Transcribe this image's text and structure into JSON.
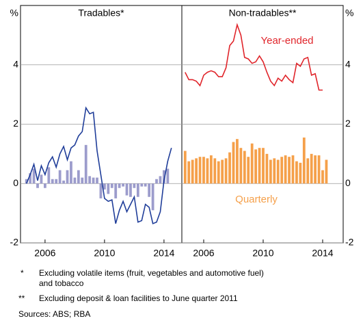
{
  "chart_data": [
    {
      "type": "bar-line",
      "title": "Tradables*",
      "y_label": "%",
      "x": [
        2004.75,
        2005,
        2005.25,
        2005.5,
        2005.75,
        2006,
        2006.25,
        2006.5,
        2006.75,
        2007,
        2007.25,
        2007.5,
        2007.75,
        2008,
        2008.25,
        2008.5,
        2008.75,
        2009,
        2009.25,
        2009.5,
        2009.75,
        2010,
        2010.25,
        2010.5,
        2010.75,
        2011,
        2011.25,
        2011.5,
        2011.75,
        2012,
        2012.25,
        2012.5,
        2012.75,
        2013,
        2013.25,
        2013.5,
        2013.75,
        2014,
        2014.25,
        2014.5
      ],
      "series": [
        {
          "kind": "bar",
          "color": "#9c9ccc",
          "values": [
            0.15,
            0.35,
            0.5,
            -0.15,
            0.3,
            -0.15,
            0.55,
            0.15,
            0.15,
            0.45,
            0.1,
            0.45,
            0.75,
            0.2,
            0.45,
            0.2,
            1.3,
            0.25,
            0.2,
            0.2,
            -0.5,
            -0.2,
            -0.35,
            -0.15,
            -0.5,
            -0.15,
            -0.1,
            -0.4,
            -0.45,
            -0.15,
            -0.45,
            -0.1,
            -0.1,
            -0.45,
            -0.9,
            0.15,
            0.25,
            0.45,
            0.5,
            null
          ]
        },
        {
          "kind": "line",
          "color": "#1f3d99",
          "values": [
            0,
            0.3,
            0.65,
            0.1,
            0.6,
            0.3,
            0.7,
            0.9,
            0.55,
            1.0,
            1.25,
            0.8,
            1.2,
            1.3,
            1.6,
            1.75,
            2.55,
            2.35,
            2.4,
            1.1,
            0.3,
            -0.5,
            -0.6,
            -0.55,
            -1.35,
            -0.9,
            -0.6,
            -0.95,
            -0.7,
            -0.45,
            -1.3,
            -1.25,
            -0.7,
            -0.8,
            -1.35,
            -1.3,
            -0.95,
            0.1,
            0.75,
            1.2
          ]
        }
      ],
      "xlim": [
        2004.35,
        2015.2
      ],
      "xticks": [
        2006,
        2010,
        2014
      ],
      "ylim": [
        -2,
        6
      ],
      "yticks": [
        -2,
        0,
        2,
        4
      ],
      "grid": true,
      "axis_side": "left"
    },
    {
      "type": "bar-line",
      "title": "Non-tradables**",
      "y_label": "%",
      "x": [
        2004.75,
        2005,
        2005.25,
        2005.5,
        2005.75,
        2006,
        2006.25,
        2006.5,
        2006.75,
        2007,
        2007.25,
        2007.5,
        2007.75,
        2008,
        2008.25,
        2008.5,
        2008.75,
        2009,
        2009.25,
        2009.5,
        2009.75,
        2010,
        2010.25,
        2010.5,
        2010.75,
        2011,
        2011.25,
        2011.5,
        2011.75,
        2012,
        2012.25,
        2012.5,
        2012.75,
        2013,
        2013.25,
        2013.5,
        2013.75,
        2014,
        2014.25,
        2014.5
      ],
      "series": [
        {
          "kind": "bar",
          "name": "Quarterly",
          "color": "#f5a04a",
          "values": [
            1.1,
            0.75,
            0.8,
            0.85,
            0.9,
            0.9,
            0.85,
            0.95,
            0.85,
            0.75,
            0.8,
            0.85,
            1.05,
            1.4,
            1.5,
            1.2,
            1.1,
            0.9,
            1.35,
            1.15,
            1.2,
            1.2,
            1.0,
            0.8,
            0.85,
            0.8,
            0.9,
            0.95,
            0.9,
            0.95,
            0.75,
            0.7,
            1.55,
            0.85,
            1.0,
            0.95,
            0.95,
            0.45,
            0.8,
            null
          ]
        },
        {
          "kind": "line",
          "name": "Year-ended",
          "color": "#e0242a",
          "values": [
            3.75,
            3.5,
            3.5,
            3.45,
            3.3,
            3.65,
            3.75,
            3.8,
            3.75,
            3.6,
            3.6,
            3.9,
            4.65,
            4.8,
            5.35,
            5.0,
            4.25,
            4.2,
            4.05,
            4.1,
            4.3,
            4.1,
            3.75,
            3.45,
            3.3,
            3.55,
            3.45,
            3.65,
            3.5,
            3.4,
            4.05,
            3.95,
            4.2,
            4.25,
            3.65,
            3.7,
            3.15,
            3.15,
            null,
            null
          ]
        }
      ],
      "xlim": [
        2004.53,
        2015.38
      ],
      "xticks": [
        2006,
        2010,
        2014
      ],
      "ylim": [
        -2,
        6
      ],
      "yticks": [
        -2,
        0,
        2,
        4
      ],
      "grid": true,
      "axis_side": "right"
    }
  ],
  "footnotes": [
    {
      "marker": "*",
      "text": "Excluding volatile items (fruit, vegetables and automotive fuel)",
      "text2": "and tobacco"
    },
    {
      "marker": "**",
      "text": "Excluding deposit & loan facilities to June quarter 2011"
    }
  ],
  "sources": "Sources:  ABS; RBA"
}
